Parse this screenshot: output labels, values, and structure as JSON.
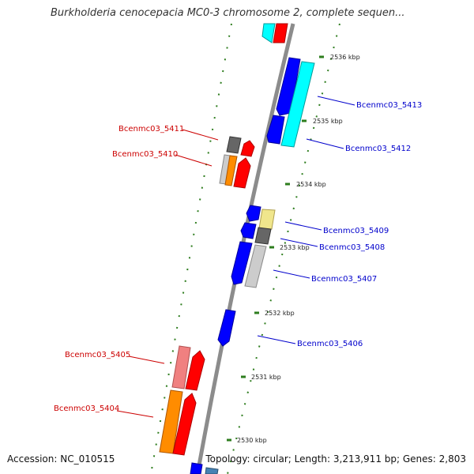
{
  "title": "Burkholderia cenocepacia MC0-3 chromosome 2, complete sequen...",
  "footer": {
    "accession": "Accession: NC_010515",
    "summary": "Topology: circular; Length: 3,213,911 bp; Genes: 2,803"
  },
  "colors": {
    "backbone": "#8c8c8c",
    "tick": "#2e7d1e",
    "forward_label": "#cc0000",
    "reverse_label": "#0000cc"
  },
  "ticks": [
    "2536 kbp",
    "2535 kbp",
    "2534 kbp",
    "2533 kbp",
    "2532 kbp",
    "2531 kbp",
    "2530 kbp"
  ],
  "gene_labels": {
    "left": [
      "Bcenmc03_5411",
      "Bcenmc03_5410",
      "Bcenmc03_5405",
      "Bcenmc03_5404"
    ],
    "right": [
      "Bcenmc03_5413",
      "Bcenmc03_5412",
      "Bcenmc03_5409",
      "Bcenmc03_5408",
      "Bcenmc03_5407",
      "Bcenmc03_5406"
    ]
  }
}
